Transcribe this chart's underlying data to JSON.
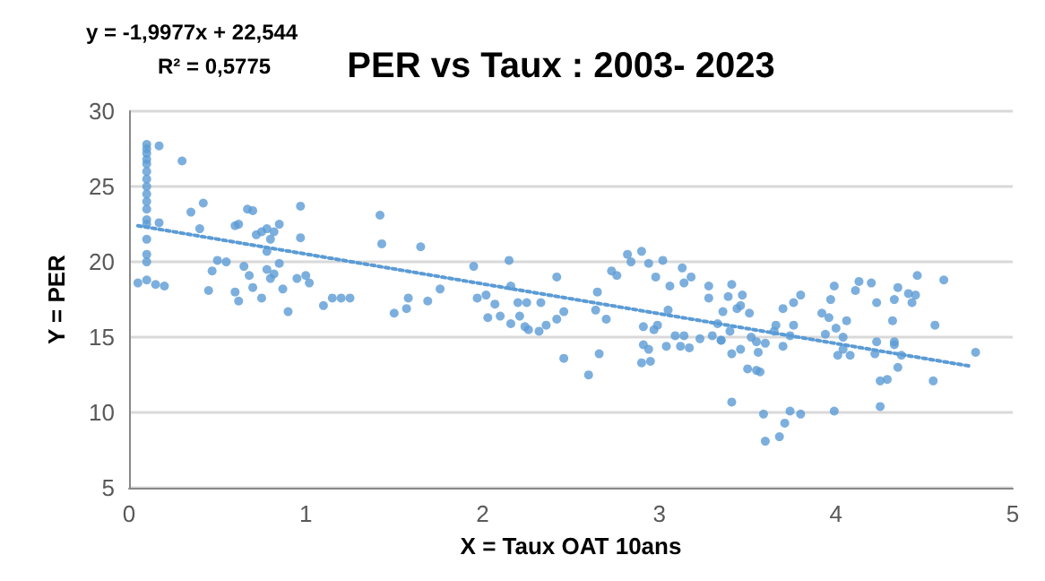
{
  "chart_data": {
    "type": "scatter",
    "title": "PER vs Taux : 2003- 2023",
    "xlabel": "X = Taux OAT 10ans",
    "ylabel": "Y = PER",
    "annotations": [
      "y = -1,9977x + 22,544",
      "R² = 0,5775"
    ],
    "xlim": [
      0,
      5
    ],
    "ylim": [
      5,
      30
    ],
    "xticks": [
      0,
      1,
      2,
      3,
      4,
      5
    ],
    "yticks": [
      5,
      10,
      15,
      20,
      25,
      30
    ],
    "grid": "y",
    "series": [
      {
        "marker": "circle",
        "color": "#5b9bd5",
        "x": [
          0.1,
          0.1,
          0.1,
          0.1,
          0.1,
          0.1,
          0.1,
          0.1,
          0.1,
          0.1,
          0.1,
          0.1,
          0.1,
          0.1,
          0.1,
          0.1,
          0.1,
          0.05,
          0.17,
          0.3,
          0.17,
          0.2,
          0.15,
          0.35,
          0.42,
          0.4,
          0.5,
          0.47,
          0.45,
          0.55,
          0.6,
          0.62,
          0.67,
          0.7,
          0.72,
          0.75,
          0.78,
          0.8,
          0.78,
          0.82,
          0.85,
          0.65,
          0.68,
          0.7,
          0.6,
          0.62,
          0.75,
          0.78,
          0.8,
          0.82,
          0.85,
          0.87,
          0.9,
          0.95,
          1.0,
          1.02,
          0.97,
          0.97,
          1.1,
          1.15,
          1.2,
          1.25,
          1.42,
          1.43,
          1.5,
          1.57,
          1.65,
          1.95,
          2.15,
          2.16,
          1.58,
          1.69,
          1.76,
          1.97,
          2.02,
          2.07,
          2.03,
          2.1,
          2.16,
          2.2,
          2.25,
          2.21,
          2.24,
          2.26,
          2.32,
          2.33,
          2.36,
          2.42,
          2.42,
          2.46,
          2.46,
          2.6,
          2.66,
          2.65,
          2.64,
          2.7,
          2.73,
          2.76,
          2.82,
          2.84,
          2.9,
          2.94,
          2.98,
          3.02,
          3.06,
          3.13,
          3.14,
          3.18,
          3.28,
          3.28,
          3.05,
          2.91,
          2.97,
          2.99,
          2.91,
          2.94,
          2.9,
          2.95,
          3.04,
          3.09,
          3.14,
          3.12,
          3.17,
          3.23,
          3.3,
          3.35,
          3.36,
          3.41,
          3.39,
          3.47,
          3.44,
          3.46,
          3.51,
          3.33,
          3.4,
          3.35,
          3.41,
          3.46,
          3.5,
          3.55,
          3.57,
          3.52,
          3.55,
          3.6,
          3.56,
          3.41,
          3.59,
          3.6,
          3.68,
          3.71,
          3.74,
          3.8,
          3.65,
          3.66,
          3.7,
          3.76,
          3.8,
          3.7,
          3.74,
          3.76,
          3.92,
          3.96,
          3.97,
          3.99,
          4.0,
          3.94,
          4.04,
          4.01,
          4.04,
          4.08,
          4.06,
          3.99,
          4.11,
          4.13,
          4.2,
          4.23,
          4.23,
          4.22,
          4.25,
          4.29,
          4.25,
          4.32,
          4.33,
          4.35,
          4.33,
          4.33,
          4.35,
          4.37,
          4.41,
          4.45,
          4.43,
          4.46,
          4.56,
          4.55,
          4.61,
          4.79
        ],
        "values": [
          27.8,
          27.5,
          27.2,
          26.8,
          26.5,
          26,
          25.5,
          25,
          24.5,
          24,
          23.5,
          22.8,
          22.5,
          21.5,
          20.5,
          20,
          18.8,
          18.6,
          27.7,
          26.7,
          22.6,
          18.4,
          18.5,
          23.3,
          23.9,
          22.2,
          20.1,
          19.4,
          18.1,
          20,
          22.4,
          22.5,
          23.5,
          23.4,
          21.8,
          22,
          22.2,
          21.5,
          20.7,
          22,
          22.5,
          19.7,
          19.1,
          18.3,
          18,
          17.4,
          17.6,
          19.5,
          18.9,
          19.2,
          19.9,
          18.2,
          16.7,
          18.9,
          19.1,
          18.6,
          21.6,
          23.7,
          17.1,
          17.6,
          17.6,
          17.6,
          23.1,
          21.2,
          16.6,
          16.9,
          21,
          19.7,
          20.1,
          18.4,
          17.6,
          17.4,
          18.2,
          17.6,
          17.8,
          17.2,
          16.3,
          16.4,
          15.9,
          17.3,
          17.3,
          16.4,
          15.7,
          15.5,
          15.4,
          17.3,
          15.8,
          16.2,
          19,
          16.7,
          13.6,
          12.5,
          13.9,
          18,
          16.8,
          16.2,
          19.4,
          19.1,
          20.5,
          20,
          20.7,
          19.9,
          19,
          20.1,
          18.4,
          19.6,
          18.6,
          19,
          18.4,
          17.6,
          16.8,
          15.7,
          15.5,
          15.8,
          14.5,
          14.2,
          13.3,
          13.4,
          14.4,
          15.1,
          15.1,
          14.4,
          14.3,
          14.9,
          15.1,
          14.8,
          16.7,
          18.5,
          17.7,
          17.8,
          16.9,
          17.1,
          16.6,
          15.9,
          15.4,
          14.8,
          13.9,
          14.2,
          12.9,
          12.8,
          12.7,
          15,
          14.7,
          14.6,
          14,
          10.7,
          9.9,
          8.1,
          8.4,
          9.3,
          10.1,
          9.9,
          15.4,
          15.8,
          16.9,
          17.3,
          17.8,
          14.4,
          15.1,
          15.8,
          16.6,
          16.3,
          17.5,
          18.4,
          15.6,
          15.2,
          15,
          13.8,
          14.2,
          13.8,
          16.1,
          10.1,
          18.1,
          18.7,
          18.6,
          17.3,
          14.7,
          13.9,
          12.1,
          12.2,
          10.4,
          16.1,
          17.5,
          18.3,
          14.7,
          14.5,
          13,
          13.8,
          17.9,
          17.8,
          17.3,
          19.1,
          15.8,
          12.1,
          18.8,
          14
        ]
      },
      {
        "type": "line",
        "marker": "none",
        "color": "#5b9bd5",
        "line_style": "dotted",
        "x": [
          0.05,
          4.75
        ],
        "values": [
          22.4,
          13.1
        ]
      }
    ]
  }
}
